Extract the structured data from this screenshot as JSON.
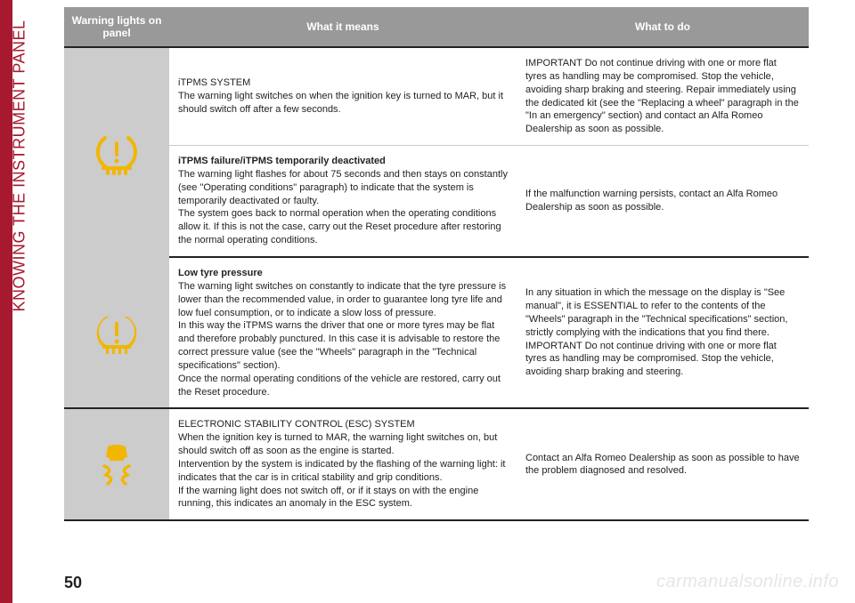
{
  "sidebar": {
    "section_title": "KNOWING THE INSTRUMENT PANEL"
  },
  "page_number": "50",
  "watermark": "carmanualsonline.info",
  "colors": {
    "brand_red": "#a6192e",
    "header_bg": "#999999",
    "header_fg": "#ffffff",
    "icon_bg": "#cccccc",
    "icon_yellow": "#f2b600",
    "border_dark": "#222222",
    "border_light": "#cccccc",
    "watermark": "#e6e6e6"
  },
  "table": {
    "headers": {
      "col1": "Warning lights on panel",
      "col2": "What it means",
      "col3": "What to do"
    },
    "rows": [
      {
        "icon": "tpms-outline-icon",
        "icon_rowspan": 2,
        "sections": [
          {
            "means_title": "iTPMS SYSTEM",
            "means_title_bold": false,
            "means_body": "The warning light switches on when the ignition key is turned to MAR, but it should switch off after a few seconds.",
            "todo": "IMPORTANT Do not continue driving with one or more flat tyres as handling may be compromised. Stop the vehicle, avoiding sharp braking and steering. Repair immediately using the dedicated kit (see the \"Replacing a wheel\" paragraph in the \"In an emergency\" section) and contact an Alfa Romeo Dealership as soon as possible."
          },
          {
            "means_title": "iTPMS failure/iTPMS temporarily deactivated",
            "means_title_bold": true,
            "means_body": "The warning light flashes for about 75 seconds and then stays on constantly (see \"Operating conditions\" paragraph) to indicate that the system is temporarily deactivated or faulty.\nThe system goes back to normal operation when the operating conditions allow it. If this is not the case, carry out the Reset procedure after restoring the normal operating conditions.",
            "todo": "If the malfunction warning persists, contact an Alfa Romeo Dealership as soon as possible."
          }
        ]
      },
      {
        "icon": "tpms-solid-icon",
        "means_title": "Low tyre pressure",
        "means_title_bold": true,
        "means_body": "The warning light switches on constantly to indicate that the tyre pressure is lower than the recommended value, in order to guarantee long tyre life and low fuel consumption, or to indicate a slow loss of pressure.\nIn this way the iTPMS warns the driver that one or more tyres may be flat and therefore probably punctured. In this case it is advisable to restore the correct pressure value (see the \"Wheels\" paragraph in the \"Technical specifications\" section).\nOnce the normal operating conditions of the vehicle are restored, carry out the Reset procedure.",
        "todo": "In any situation in which the message on the display is \"See manual\", it is ESSENTIAL to refer to the contents of the \"Wheels\" paragraph in the \"Technical specifications\" section, strictly complying with the indications that you find there.\nIMPORTANT Do not continue driving with one or more flat tyres as handling may be compromised. Stop the vehicle, avoiding sharp braking and steering."
      },
      {
        "icon": "esc-icon",
        "means_title": "ELECTRONIC STABILITY CONTROL (ESC) SYSTEM",
        "means_title_bold": false,
        "means_body": "When the ignition key is turned to MAR, the warning light switches on, but should switch off as soon as the engine is started.\nIntervention by the system is indicated by the flashing of the warning light: it indicates that the car is in critical stability and grip conditions.\nIf the warning light does not switch off, or if it stays on with the engine running, this indicates an anomaly in the ESC system.",
        "todo": "Contact an Alfa Romeo Dealership as soon as possible to have the problem diagnosed and resolved."
      }
    ]
  }
}
